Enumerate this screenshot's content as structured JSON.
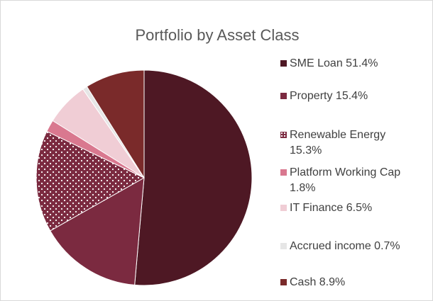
{
  "chart_data": {
    "type": "pie",
    "title": "Portfolio by Asset Class",
    "categories": [
      "SME Loan 51.4%",
      "Property 15.4%",
      "Renewable Energy 15.3%",
      "Platform Working Cap 1.8%",
      "IT Finance 6.5%",
      "Accrued income 0.7%",
      "Cash 8.9%"
    ],
    "values": [
      51.4,
      15.4,
      15.3,
      1.8,
      6.5,
      0.7,
      8.9
    ],
    "colors": [
      "#4e1824",
      "#7b2a40",
      "#7b2a40",
      "#d9788f",
      "#f0cdd5",
      "#e6e6e6",
      "#7a2a2a"
    ],
    "patterns": [
      null,
      null,
      "dots",
      null,
      null,
      null,
      null
    ],
    "legend": "right"
  }
}
